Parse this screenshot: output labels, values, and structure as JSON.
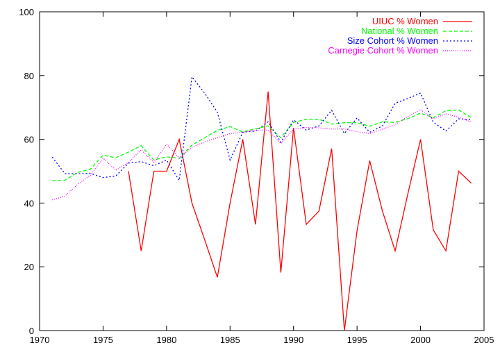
{
  "chart_data": {
    "type": "line",
    "title": "",
    "xlabel": "",
    "ylabel": "",
    "xlim": [
      1970,
      2005
    ],
    "ylim": [
      0,
      100
    ],
    "xticks": [
      1970,
      1975,
      1980,
      1985,
      1990,
      1995,
      2000,
      2005
    ],
    "yticks": [
      0,
      20,
      40,
      60,
      80,
      100
    ],
    "grid": false,
    "legend_position": "top-right",
    "series": [
      {
        "name": "UIUC % Women",
        "color": "#ff0000",
        "dash": "solid",
        "x": [
          1977,
          1978,
          1979,
          1980,
          1981,
          1982,
          1983,
          1984,
          1985,
          1986,
          1987,
          1988,
          1989,
          1990,
          1991,
          1992,
          1993,
          1994,
          1995,
          1996,
          1997,
          1998,
          1999,
          2000,
          2001,
          2002,
          2003,
          2004
        ],
        "y": [
          50,
          25,
          50,
          50,
          60,
          40,
          28.5,
          16.7,
          40,
          60,
          33.3,
          75,
          18.2,
          63.6,
          33.3,
          37.5,
          57.1,
          0,
          31.3,
          53.3,
          37.5,
          25,
          42.9,
          60,
          31.6,
          25,
          50,
          46.2
        ]
      },
      {
        "name": "National % Women",
        "color": "#00ff00",
        "dash": "dashed",
        "x": [
          1971,
          1972,
          1973,
          1974,
          1975,
          1976,
          1977,
          1978,
          1979,
          1980,
          1981,
          1982,
          1983,
          1984,
          1985,
          1986,
          1987,
          1988,
          1989,
          1990,
          1991,
          1992,
          1993,
          1994,
          1995,
          1996,
          1997,
          1998,
          1999,
          2000,
          2001,
          2002,
          2003,
          2004
        ],
        "y": [
          47,
          47.2,
          49.6,
          50.6,
          55,
          54.2,
          56,
          58,
          53.5,
          54.5,
          54,
          58.2,
          60.5,
          62.8,
          64,
          62.3,
          63.3,
          64.2,
          60.5,
          65.3,
          66.3,
          66.3,
          64.8,
          65.2,
          65.2,
          64.1,
          65.5,
          65.3,
          66.5,
          68.2,
          66.8,
          69,
          69.2,
          66.8
        ]
      },
      {
        "name": "Size Cohort % Women",
        "color": "#0000ff",
        "dash": "dotted",
        "x": [
          1971,
          1972,
          1973,
          1974,
          1975,
          1976,
          1977,
          1978,
          1979,
          1980,
          1981,
          1982,
          1983,
          1984,
          1985,
          1986,
          1987,
          1988,
          1989,
          1990,
          1991,
          1992,
          1993,
          1994,
          1995,
          1996,
          1997,
          1998,
          1999,
          2000,
          2001,
          2002,
          2003,
          2004
        ],
        "y": [
          54.4,
          49.2,
          49.2,
          49.3,
          48,
          48.5,
          52.5,
          53,
          51.7,
          53.5,
          47.1,
          79.6,
          74.5,
          68.5,
          53.5,
          62.2,
          62.6,
          65.5,
          59.1,
          66.1,
          62.9,
          64.2,
          69.1,
          61.8,
          66.7,
          62.2,
          64.2,
          71.3,
          72.8,
          74.5,
          65.4,
          62.6,
          66.4,
          66.2
        ]
      },
      {
        "name": "Carnegie Cohort % Women",
        "color": "#ff00ff",
        "dash": "finedotted",
        "x": [
          1971,
          1972,
          1973,
          1974,
          1975,
          1976,
          1977,
          1978,
          1979,
          1980,
          1981,
          1982,
          1983,
          1984,
          1985,
          1986,
          1987,
          1988,
          1989,
          1990,
          1991,
          1992,
          1993,
          1994,
          1995,
          1996,
          1997,
          1998,
          1999,
          2000,
          2001,
          2002,
          2003,
          2004
        ],
        "y": [
          41,
          42.2,
          45.9,
          48.7,
          54.1,
          50.3,
          52.7,
          56.7,
          52.7,
          58.5,
          54.1,
          57.5,
          59.2,
          60.5,
          61.8,
          62.2,
          62.8,
          62.9,
          58.7,
          63.2,
          63.7,
          63.6,
          63.2,
          63.3,
          62.4,
          61.8,
          63.2,
          64.6,
          67.2,
          69.3,
          66.5,
          68,
          66.9,
          65.4
        ]
      }
    ]
  }
}
